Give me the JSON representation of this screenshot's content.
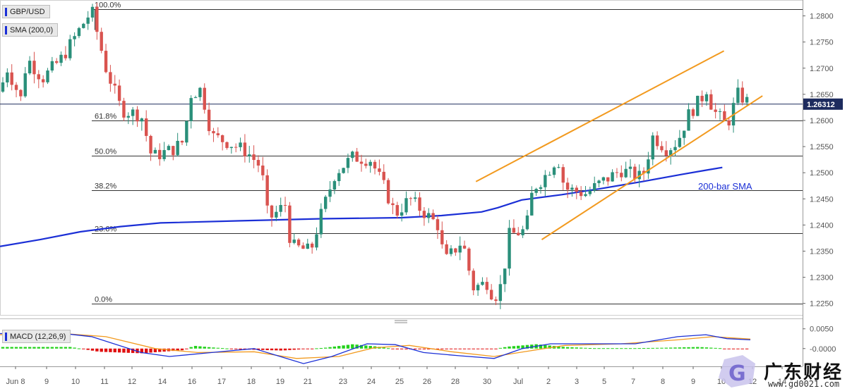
{
  "symbol_label": "GBP/USD",
  "sma_label": "SMA (200,0)",
  "macd_label": "MACD (12,26,9)",
  "price_tag": "1.26312",
  "sma_annotation": "200-bar SMA",
  "watermark": {
    "text": "广东财经",
    "url": "www.gd0021.com"
  },
  "colors": {
    "bull": "#2a8f7a",
    "bear": "#d9534f",
    "sma": "#1b2fd6",
    "channel": "#f29a1f",
    "macd_line": "#1b2fd6",
    "signal_line": "#f29a1f",
    "hist_pos": "#22d11a",
    "hist_neg": "#e01010"
  },
  "chart_data": {
    "type": "candlestick",
    "title": "GBP/USD",
    "y_ticks": [
      "1.2800",
      "1.2750",
      "1.2700",
      "1.2650",
      "1.2600",
      "1.2550",
      "1.2500",
      "1.2450",
      "1.2400",
      "1.2350",
      "1.2300",
      "1.2250"
    ],
    "y_range": [
      1.2228,
      1.2825
    ],
    "x_ticks": [
      "Jun 8",
      "9",
      "10",
      "11",
      "12",
      "14",
      "16",
      "17",
      "18",
      "19",
      "21",
      "23",
      "24",
      "25",
      "26",
      "28",
      "30",
      "Jul",
      "2",
      "3",
      "5",
      "7",
      "8",
      "9",
      "10",
      "12",
      "14"
    ],
    "last_price": 1.26312,
    "fibonacci": [
      {
        "label": "100.0%",
        "price": 1.2813
      },
      {
        "label": "61.8%",
        "price": 1.26
      },
      {
        "label": "50.0%",
        "price": 1.2532
      },
      {
        "label": "38.2%",
        "price": 1.2466
      },
      {
        "label": "23.6%",
        "price": 1.2384
      },
      {
        "label": "0.0%",
        "price": 1.225
      }
    ],
    "channel": {
      "upper": [
        [
          0.593,
          1.2483
        ],
        [
          0.902,
          1.2733
        ]
      ],
      "lower": [
        [
          0.675,
          1.2372
        ],
        [
          0.95,
          1.2647
        ]
      ]
    },
    "sma200": [
      [
        0.0,
        1.2359
      ],
      [
        0.05,
        1.2372
      ],
      [
        0.1,
        1.2387
      ],
      [
        0.15,
        1.2397
      ],
      [
        0.2,
        1.2404
      ],
      [
        0.3,
        1.2408
      ],
      [
        0.4,
        1.2412
      ],
      [
        0.5,
        1.2414
      ],
      [
        0.55,
        1.2418
      ],
      [
        0.6,
        1.2425
      ],
      [
        0.62,
        1.2433
      ],
      [
        0.65,
        1.2448
      ],
      [
        0.7,
        1.2458
      ],
      [
        0.75,
        1.247
      ],
      [
        0.8,
        1.2483
      ],
      [
        0.85,
        1.2497
      ],
      [
        0.88,
        1.2505
      ],
      [
        0.9,
        1.251
      ]
    ],
    "macd": {
      "y_ticks": [
        "0.0050",
        "-0.0000"
      ],
      "y_range": [
        -0.0045,
        0.0062
      ]
    }
  }
}
